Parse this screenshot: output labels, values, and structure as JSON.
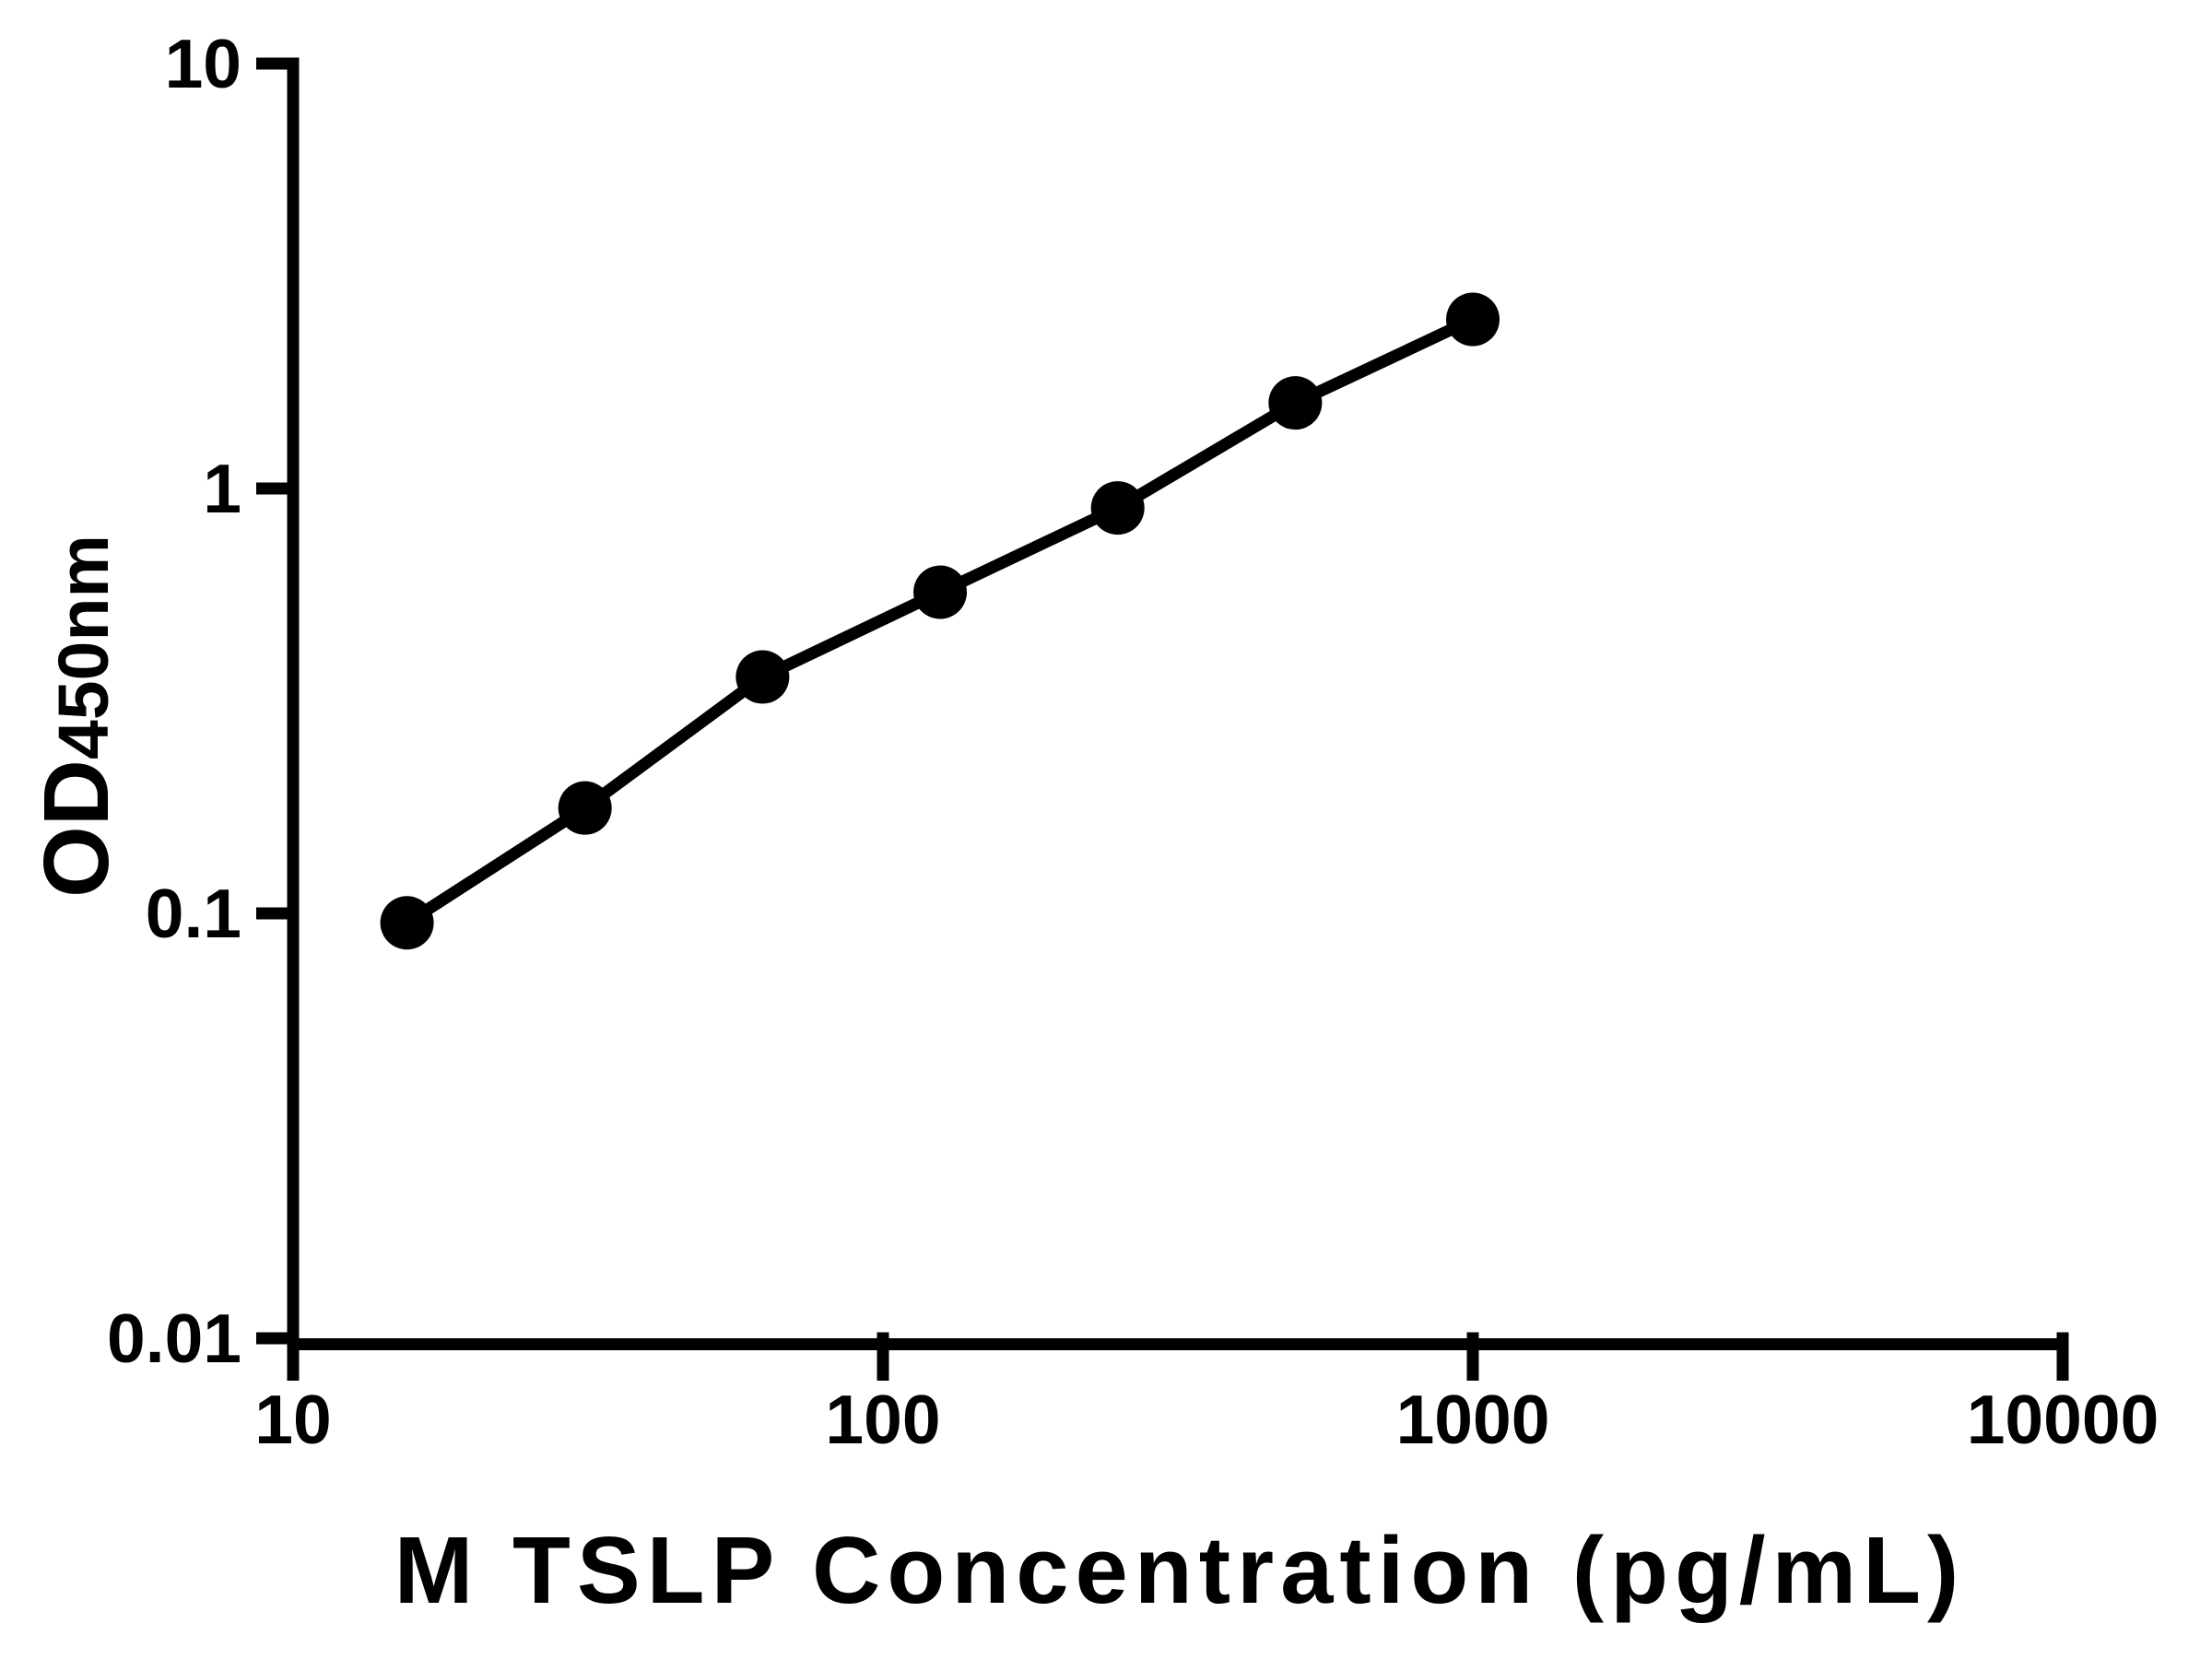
{
  "chart_data": {
    "type": "scatter-line",
    "x": [
      15.6,
      31.25,
      62.5,
      125,
      250,
      500,
      1000
    ],
    "y": [
      0.095,
      0.177,
      0.36,
      0.57,
      0.9,
      1.59,
      2.5
    ],
    "xlabel": "M TSLP Concentration (pg/mL)",
    "ylabel": "OD",
    "ylabel_subscript": "450nm",
    "xscale": "log",
    "yscale": "log",
    "xlim": [
      10,
      10000
    ],
    "ylim": [
      0.01,
      10
    ],
    "x_ticks": [
      {
        "value": 10,
        "label": "10"
      },
      {
        "value": 100,
        "label": "100"
      },
      {
        "value": 1000,
        "label": "1000"
      },
      {
        "value": 10000,
        "label": "10000"
      }
    ],
    "y_ticks": [
      {
        "value": 10,
        "label": "10"
      },
      {
        "value": 1,
        "label": "1"
      },
      {
        "value": 0.1,
        "label": "0.1"
      },
      {
        "value": 0.01,
        "label": "0.01"
      }
    ],
    "grid": false,
    "legend": false,
    "marker": "filled-circle",
    "marker_color": "#000000",
    "line_color": "#000000",
    "axis_color": "#000000",
    "background_color": "#ffffff"
  }
}
